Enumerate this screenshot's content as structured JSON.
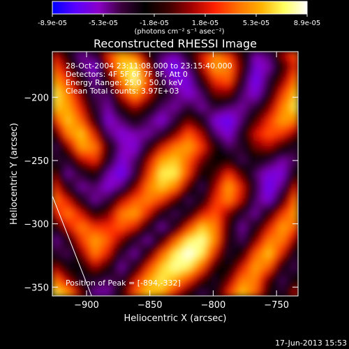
{
  "colorbar": {
    "tick_labels": [
      "-8.9e-05",
      "-5.3e-05",
      "-1.8e-05",
      "1.8e-05",
      "5.3e-05",
      "8.9e-05"
    ],
    "units_label": "(photons cm⁻² s⁻¹ asec⁻²)",
    "stops": [
      "#0000ff",
      "#5a00ff",
      "#8a00c8",
      "#3a003a",
      "#000000",
      "#3a0000",
      "#a00000",
      "#ff2000",
      "#ff7000",
      "#ffb000",
      "#ffff60",
      "#ffffff"
    ]
  },
  "chart_data": {
    "type": "heatmap",
    "title": "Reconstructed RHESSI Image",
    "xlabel": "Heliocentric X (arcsec)",
    "ylabel": "Heliocentric Y (arcsec)",
    "xlim": [
      -927,
      -733
    ],
    "ylim": [
      -357,
      -164
    ],
    "x_ticks": [
      -900,
      -850,
      -800,
      -750
    ],
    "y_ticks": [
      -200,
      -250,
      -300,
      -350
    ],
    "x_tick_labels": [
      "−900",
      "−850",
      "−800",
      "−750"
    ],
    "y_tick_labels": [
      "−200",
      "−250",
      "−300",
      "−350"
    ],
    "value_range": [
      -8.9e-05,
      8.9e-05
    ],
    "grid_resolution": [
      19,
      19
    ],
    "z": [
      [
        0.2,
        -0.3,
        -0.6,
        -0.4,
        0.3,
        0.6,
        0.4,
        -0.2,
        -0.5,
        -0.6,
        -0.3,
        0.2,
        0.5,
        0.3,
        -0.2,
        -0.6,
        -0.5,
        0.1,
        0.4
      ],
      [
        0.4,
        0.0,
        -0.5,
        -0.7,
        0.1,
        0.7,
        0.8,
        0.1,
        -0.6,
        -0.8,
        -0.5,
        0.1,
        0.6,
        0.5,
        -0.1,
        -0.7,
        -0.6,
        -0.2,
        0.3
      ],
      [
        0.6,
        0.3,
        -0.2,
        -0.6,
        -0.2,
        0.5,
        0.9,
        0.3,
        -0.4,
        -0.7,
        -0.7,
        -0.2,
        0.3,
        0.4,
        -0.3,
        -0.8,
        -0.4,
        0.0,
        0.5
      ],
      [
        0.8,
        0.5,
        0.0,
        -0.5,
        -0.5,
        0.2,
        0.6,
        0.2,
        -0.3,
        -0.5,
        -0.7,
        -0.5,
        0.0,
        0.0,
        -0.5,
        -0.7,
        -0.3,
        0.3,
        0.7
      ],
      [
        0.7,
        0.6,
        0.2,
        -0.4,
        -0.6,
        -0.2,
        0.1,
        -0.2,
        -0.5,
        -0.6,
        -0.4,
        -0.6,
        -0.4,
        -0.5,
        -0.6,
        -0.4,
        0.0,
        0.5,
        0.8
      ],
      [
        0.3,
        0.7,
        0.4,
        -0.2,
        -0.7,
        -0.5,
        -0.3,
        -0.5,
        -0.7,
        -0.4,
        0.0,
        -0.3,
        -0.7,
        -0.8,
        -0.5,
        -0.1,
        0.3,
        0.6,
        0.5
      ],
      [
        -0.2,
        0.5,
        0.7,
        0.2,
        -0.5,
        -0.7,
        -0.6,
        -0.6,
        -0.4,
        0.0,
        0.4,
        0.1,
        -0.5,
        -0.7,
        -0.3,
        0.2,
        0.4,
        0.3,
        0.0
      ],
      [
        -0.5,
        0.0,
        0.6,
        0.5,
        -0.2,
        -0.6,
        -0.7,
        -0.3,
        0.2,
        0.5,
        0.6,
        0.3,
        -0.2,
        -0.5,
        -0.4,
        0.0,
        0.1,
        -0.2,
        -0.4
      ],
      [
        -0.4,
        -0.4,
        0.1,
        0.3,
        -0.3,
        -0.7,
        -0.5,
        0.1,
        0.6,
        0.7,
        0.4,
        0.0,
        -0.3,
        -0.2,
        -0.5,
        -0.3,
        -0.4,
        -0.6,
        -0.5
      ],
      [
        0.0,
        -0.6,
        -0.4,
        -0.2,
        -0.6,
        -0.8,
        -0.4,
        0.3,
        0.8,
        0.8,
        0.3,
        -0.3,
        -0.1,
        0.3,
        -0.1,
        -0.5,
        -0.7,
        -0.7,
        -0.2
      ],
      [
        0.3,
        -0.3,
        -0.6,
        -0.5,
        -0.7,
        -0.5,
        0.0,
        0.5,
        0.7,
        0.5,
        -0.1,
        -0.5,
        0.1,
        0.6,
        0.2,
        -0.4,
        -0.8,
        -0.5,
        0.2
      ],
      [
        0.5,
        0.2,
        -0.3,
        -0.6,
        -0.4,
        0.1,
        0.4,
        0.5,
        0.3,
        -0.1,
        -0.5,
        -0.3,
        0.3,
        0.5,
        0.1,
        -0.5,
        -0.7,
        -0.2,
        0.5
      ],
      [
        0.2,
        0.5,
        0.2,
        -0.2,
        0.0,
        0.5,
        0.6,
        0.2,
        -0.3,
        -0.5,
        -0.3,
        0.2,
        0.4,
        0.0,
        -0.4,
        -0.6,
        -0.2,
        0.3,
        0.6
      ],
      [
        -0.3,
        0.2,
        0.5,
        0.3,
        0.3,
        0.4,
        0.2,
        -0.3,
        -0.6,
        -0.3,
        0.3,
        0.7,
        0.5,
        -0.2,
        -0.6,
        -0.3,
        0.2,
        0.6,
        0.4
      ],
      [
        -0.6,
        -0.3,
        0.3,
        0.6,
        0.4,
        0.0,
        -0.4,
        -0.6,
        -0.2,
        0.4,
        0.8,
        0.9,
        0.5,
        -0.3,
        -0.5,
        0.0,
        0.5,
        0.5,
        0.0
      ],
      [
        -0.4,
        -0.5,
        0.0,
        0.5,
        0.2,
        -0.4,
        -0.6,
        -0.2,
        0.4,
        0.8,
        1.0,
        0.8,
        0.2,
        -0.4,
        -0.2,
        0.4,
        0.7,
        0.2,
        -0.4
      ],
      [
        0.1,
        -0.3,
        -0.3,
        0.1,
        -0.2,
        -0.6,
        -0.3,
        0.3,
        0.7,
        0.9,
        0.8,
        0.4,
        -0.2,
        -0.3,
        0.2,
        0.6,
        0.4,
        -0.3,
        -0.5
      ],
      [
        0.5,
        0.1,
        -0.4,
        -0.4,
        -0.5,
        -0.4,
        0.2,
        0.6,
        0.8,
        0.6,
        0.3,
        -0.1,
        -0.4,
        0.0,
        0.5,
        0.5,
        -0.1,
        -0.5,
        -0.2
      ],
      [
        0.8,
        0.6,
        0.0,
        -0.6,
        -0.6,
        -0.2,
        0.4,
        0.7,
        0.6,
        0.2,
        -0.2,
        -0.5,
        -0.3,
        0.3,
        0.7,
        0.4,
        -0.3,
        -0.4,
        0.2
      ]
    ],
    "info_lines": [
      "28-Oct-2004 23:11:08.000 to 23:15:40.000",
      "Detectors: 4F 5F 6F 7F 8F, Att 0",
      "Energy Range: 25.0 - 50.0 keV",
      "Clean     Total counts: 3.97E+03"
    ],
    "peak_label": "Position of Peak = [-894,-332]",
    "limb_line": {
      "x": [
        -927,
        -896
      ],
      "y": [
        -278,
        -357
      ]
    },
    "grid": false,
    "legend": "none"
  },
  "footer": {
    "timestamp": "17-Jun-2013 15:53"
  }
}
